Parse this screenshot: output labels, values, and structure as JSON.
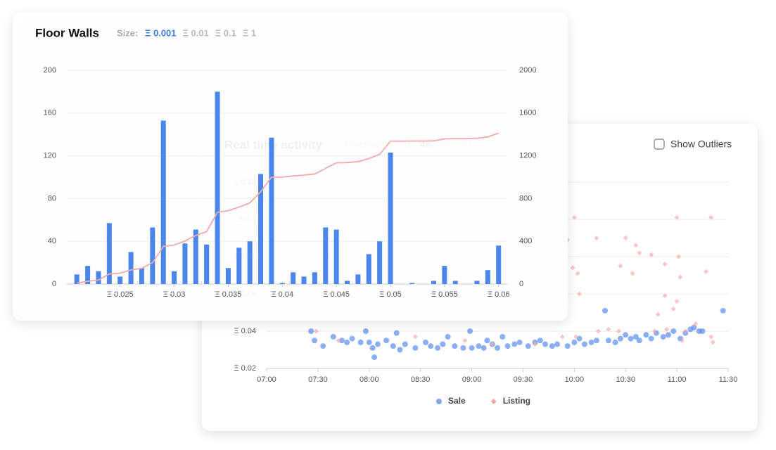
{
  "chart_data": [
    {
      "type": "bar",
      "title": "Floor Walls",
      "size_label": "Size:",
      "size_options": [
        {
          "label": "Ξ 0.001",
          "selected": true
        },
        {
          "label": "Ξ 0.01"
        },
        {
          "label": "Ξ 0.1"
        },
        {
          "label": "Ξ 1"
        }
      ],
      "x": [
        0.021,
        0.022,
        0.023,
        0.024,
        0.025,
        0.026,
        0.027,
        0.028,
        0.029,
        0.03,
        0.031,
        0.032,
        0.033,
        0.034,
        0.035,
        0.036,
        0.037,
        0.038,
        0.039,
        0.04,
        0.041,
        0.042,
        0.043,
        0.044,
        0.045,
        0.046,
        0.047,
        0.048,
        0.049,
        0.05,
        0.051,
        0.052,
        0.053,
        0.054,
        0.055,
        0.056,
        0.057,
        0.058,
        0.059,
        0.06
      ],
      "series": [
        {
          "type": "bar",
          "color": "#4a86ec",
          "values": [
            9,
            17,
            12,
            57,
            7,
            30,
            15,
            53,
            153,
            12,
            38,
            51,
            37,
            180,
            15,
            34,
            40,
            103,
            137,
            1,
            11,
            7,
            11,
            53,
            51,
            3,
            9,
            28,
            40,
            123,
            0,
            1,
            0,
            3,
            17,
            3,
            0,
            3,
            13,
            36
          ]
        },
        {
          "type": "line",
          "axis": "y2",
          "color": "#f2aaaa",
          "values": [
            9,
            26,
            38,
            95,
            102,
            132,
            147,
            200,
            353,
            365,
            403,
            454,
            491,
            671,
            686,
            720,
            760,
            863,
            1000,
            1001,
            1012,
            1019,
            1030,
            1083,
            1134,
            1137,
            1146,
            1174,
            1214,
            1337,
            1337,
            1338,
            1338,
            1341,
            1358,
            1361,
            1361,
            1364,
            1377,
            1413
          ]
        }
      ],
      "xlim": [
        0.0204,
        0.0608
      ],
      "xticks": [
        {
          "value": 0.025,
          "label": "Ξ 0.025"
        },
        {
          "value": 0.03,
          "label": "Ξ 0.03"
        },
        {
          "value": 0.035,
          "label": "Ξ 0.035"
        },
        {
          "value": 0.04,
          "label": "Ξ 0.04"
        },
        {
          "value": 0.045,
          "label": "Ξ 0.045"
        },
        {
          "value": 0.05,
          "label": "Ξ 0.05"
        },
        {
          "value": 0.055,
          "label": "Ξ 0.055"
        },
        {
          "value": 0.06,
          "label": "Ξ 0.06"
        }
      ],
      "ylim": [
        0,
        200
      ],
      "yticks": [
        0,
        40,
        80,
        120,
        160,
        200
      ],
      "y2lim": [
        0,
        2000
      ],
      "y2ticks": [
        0,
        400,
        800,
        1200,
        1600,
        2000
      ],
      "grid": true
    },
    {
      "type": "scatter",
      "title": "Real time activity",
      "timeframe_label": "Timeframe:",
      "timeframe_options": [
        {
          "label": "1h"
        },
        {
          "label": "4h",
          "selected": true
        },
        {
          "label": "24h"
        },
        {
          "label": "7d"
        }
      ],
      "toggle": {
        "label": "Show Outliers",
        "checked": false
      },
      "xlim": [
        "07:00",
        "11:30"
      ],
      "xticks": [
        "07:00",
        "07:30",
        "08:00",
        "08:30",
        "09:00",
        "09:30",
        "10:00",
        "10:30",
        "11:00",
        "11:30"
      ],
      "ylim": [
        0.02,
        0.12
      ],
      "yticks": [
        {
          "value": 0.02,
          "label": "Ξ 0.02"
        },
        {
          "value": 0.04,
          "label": "Ξ 0.04"
        },
        {
          "value": 0.06,
          "label": "Ξ 0.06"
        },
        {
          "value": 0.08,
          "label": "Ξ 0.08"
        },
        {
          "value": 0.1,
          "label": "Ξ 0.1"
        },
        {
          "value": 0.12,
          "label": "Ξ 0.12"
        }
      ],
      "grid": true,
      "legend": "bottom",
      "series": [
        {
          "name": "Sale",
          "color": "#4d82ee",
          "marker": "circle",
          "x": [
            "07:26",
            "07:28",
            "07:33",
            "07:39",
            "07:44",
            "07:47",
            "07:50",
            "07:55",
            "07:58",
            "08:00",
            "08:02",
            "08:03",
            "08:05",
            "08:10",
            "08:14",
            "08:16",
            "08:18",
            "08:21",
            "08:27",
            "08:33",
            "08:36",
            "08:40",
            "08:43",
            "08:46",
            "08:50",
            "08:55",
            "08:59",
            "09:00",
            "09:04",
            "09:07",
            "09:09",
            "09:12",
            "09:15",
            "09:18",
            "09:21",
            "09:25",
            "09:28",
            "09:33",
            "09:37",
            "09:40",
            "09:43",
            "09:47",
            "09:50",
            "09:56",
            "10:00",
            "10:03",
            "10:06",
            "10:10",
            "10:13",
            "10:18",
            "10:20",
            "10:24",
            "10:27",
            "10:30",
            "10:33",
            "10:36",
            "10:38",
            "10:42",
            "10:45",
            "10:48",
            "10:52",
            "10:55",
            "10:58",
            "11:02",
            "11:05",
            "11:08",
            "11:10",
            "11:13",
            "11:15",
            "11:27"
          ],
          "values": [
            0.04,
            0.035,
            0.032,
            0.037,
            0.035,
            0.034,
            0.036,
            0.034,
            0.04,
            0.034,
            0.031,
            0.026,
            0.033,
            0.035,
            0.032,
            0.039,
            0.03,
            0.033,
            0.031,
            0.034,
            0.032,
            0.031,
            0.033,
            0.037,
            0.032,
            0.031,
            0.04,
            0.031,
            0.032,
            0.031,
            0.035,
            0.033,
            0.031,
            0.037,
            0.032,
            0.033,
            0.034,
            0.032,
            0.034,
            0.035,
            0.033,
            0.032,
            0.033,
            0.032,
            0.034,
            0.036,
            0.033,
            0.034,
            0.035,
            0.051,
            0.035,
            0.034,
            0.036,
            0.038,
            0.036,
            0.037,
            0.035,
            0.038,
            0.036,
            0.039,
            0.037,
            0.038,
            0.04,
            0.036,
            0.039,
            0.041,
            0.042,
            0.04,
            0.04,
            0.051
          ]
        },
        {
          "name": "Listing",
          "color": "#f4a7a7",
          "marker": "diamond",
          "x": [
            "10:00",
            "10:13",
            "09:56",
            "10:30",
            "10:36",
            "10:27",
            "10:45",
            "11:00",
            "11:20",
            "11:01",
            "10:53",
            "10:38",
            "11:02",
            "10:34",
            "09:59",
            "10:02",
            "10:03",
            "11:00",
            "10:53",
            "10:58",
            "11:17",
            "10:49",
            "10:14",
            "10:20",
            "10:47",
            "10:54",
            "11:05",
            "11:11",
            "11:20",
            "10:01",
            "09:53",
            "09:37",
            "09:12",
            "08:56",
            "08:27",
            "07:42",
            "07:29",
            "10:26",
            "11:21",
            "11:03"
          ],
          "values": [
            0.101,
            0.09,
            0.089,
            0.09,
            0.086,
            0.075,
            0.081,
            0.101,
            0.101,
            0.08,
            0.076,
            0.082,
            0.069,
            0.071,
            0.074,
            0.071,
            0.06,
            0.056,
            0.059,
            0.052,
            0.072,
            0.049,
            0.04,
            0.041,
            0.04,
            0.041,
            0.04,
            0.044,
            0.037,
            0.037,
            0.037,
            0.033,
            0.033,
            0.035,
            0.037,
            0.035,
            0.04,
            0.04,
            0.034,
            0.035
          ]
        }
      ]
    }
  ]
}
